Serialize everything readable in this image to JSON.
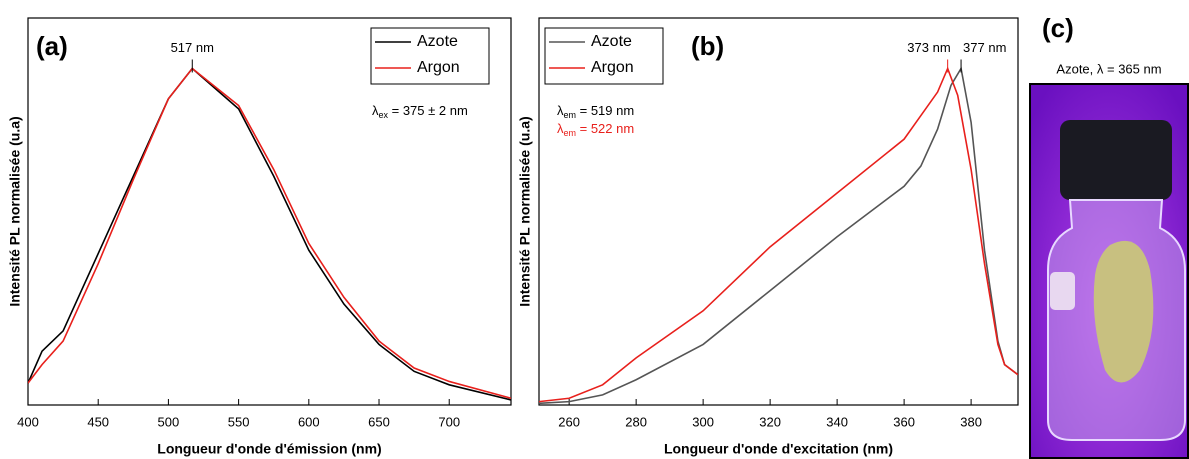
{
  "chart_data": [
    {
      "type": "line",
      "panel_label": "(a)",
      "xlabel": "Longueur d'onde d'émission (nm)",
      "ylabel": "Intensité PL normalisée (u.a)",
      "xlim": [
        400,
        744
      ],
      "ylim": [
        0,
        1.15
      ],
      "xticks": [
        400,
        450,
        500,
        550,
        600,
        650,
        700
      ],
      "legend": "upper right",
      "series": [
        {
          "name": "Azote",
          "color": "#000000",
          "x": [
            400,
            410,
            425,
            450,
            475,
            500,
            517,
            550,
            575,
            600,
            625,
            650,
            675,
            700,
            744
          ],
          "values": [
            0.065,
            0.16,
            0.22,
            0.45,
            0.68,
            0.91,
            1.0,
            0.88,
            0.68,
            0.46,
            0.3,
            0.18,
            0.1,
            0.06,
            0.015
          ]
        },
        {
          "name": "Argon",
          "color": "#e8201c",
          "x": [
            400,
            410,
            425,
            450,
            475,
            500,
            517,
            550,
            575,
            600,
            625,
            650,
            675,
            700,
            744
          ],
          "values": [
            0.065,
            0.12,
            0.19,
            0.42,
            0.67,
            0.91,
            1.0,
            0.89,
            0.7,
            0.48,
            0.32,
            0.19,
            0.11,
            0.07,
            0.02
          ]
        }
      ],
      "annotations": [
        {
          "text": "517 nm",
          "x": 517,
          "y": 1.0,
          "color": "#000000"
        }
      ],
      "notes": [
        {
          "symbol": "λ",
          "sub": "ex",
          "text": " = 375 ± 2 nm",
          "color": "#000000"
        }
      ]
    },
    {
      "type": "line",
      "panel_label": "(b)",
      "xlabel": "Longueur d'onde d'excitation (nm)",
      "ylabel": "Intensité PL normalisée (u.a)",
      "xlim": [
        251,
        394
      ],
      "ylim": [
        0,
        1.15
      ],
      "xticks": [
        260,
        280,
        300,
        320,
        340,
        360,
        380
      ],
      "legend": "upper left",
      "series": [
        {
          "name": "Azote",
          "color": "#555555",
          "x": [
            251,
            260,
            270,
            280,
            300,
            320,
            340,
            360,
            365,
            370,
            374,
            377,
            380,
            384,
            388,
            390,
            394
          ],
          "values": [
            0.005,
            0.01,
            0.03,
            0.075,
            0.18,
            0.34,
            0.5,
            0.65,
            0.71,
            0.82,
            0.95,
            1.0,
            0.84,
            0.46,
            0.19,
            0.12,
            0.09
          ]
        },
        {
          "name": "Argon",
          "color": "#e8201c",
          "x": [
            251,
            260,
            270,
            280,
            300,
            320,
            340,
            360,
            370,
            373,
            376,
            380,
            384,
            388,
            390,
            394
          ],
          "values": [
            0.01,
            0.02,
            0.06,
            0.14,
            0.28,
            0.47,
            0.63,
            0.79,
            0.93,
            1.0,
            0.92,
            0.7,
            0.42,
            0.18,
            0.12,
            0.09
          ]
        }
      ],
      "annotations": [
        {
          "text": "373 nm",
          "x": 373,
          "y": 1.0,
          "color": "#e8201c"
        },
        {
          "text": "377 nm",
          "x": 377,
          "y": 1.0,
          "color": "#000000"
        }
      ],
      "notes": [
        {
          "symbol": "λ",
          "sub": "em",
          "text": " = 519 nm",
          "color": "#000000"
        },
        {
          "symbol": "λ",
          "sub": "em",
          "text": " = 522 nm",
          "color": "#e8201c"
        }
      ]
    }
  ],
  "photo": {
    "panel_label": "(c)",
    "caption": "Azote, λ = 365 nm"
  }
}
